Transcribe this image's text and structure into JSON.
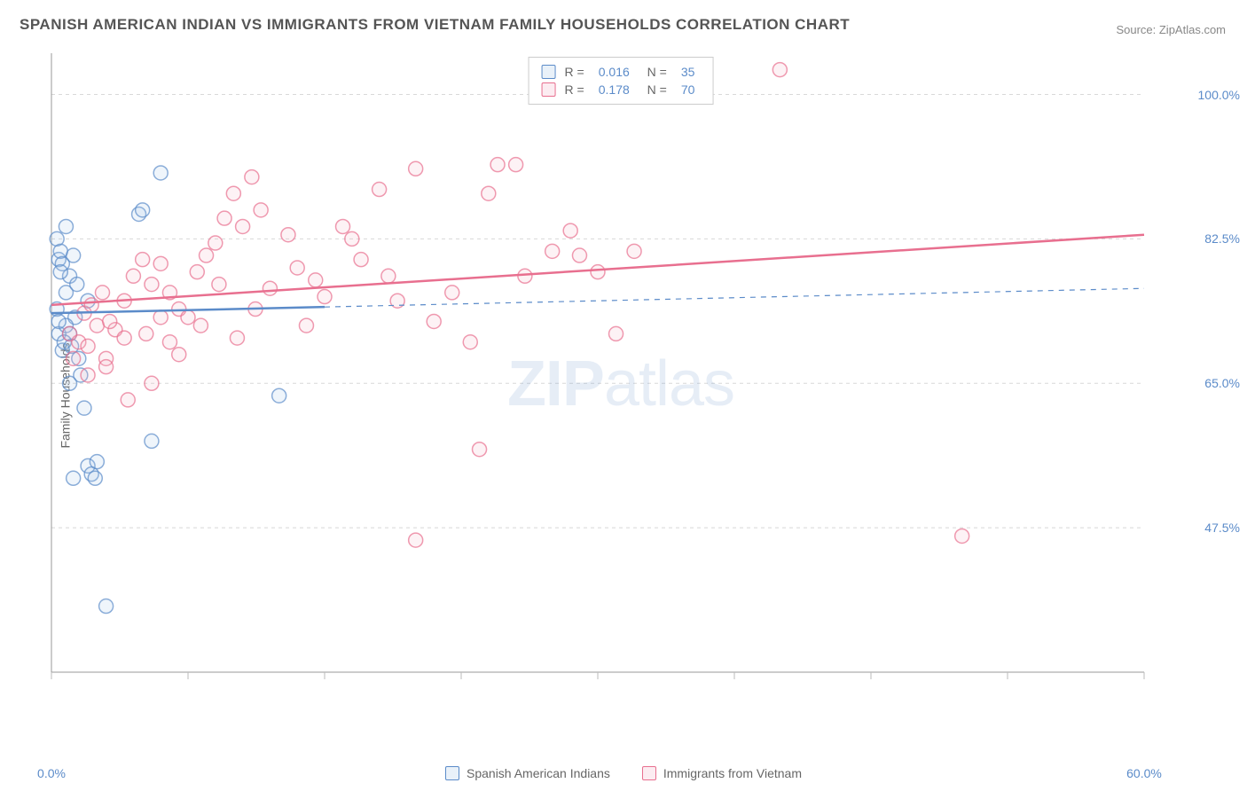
{
  "title": "SPANISH AMERICAN INDIAN VS IMMIGRANTS FROM VIETNAM FAMILY HOUSEHOLDS CORRELATION CHART",
  "source": "Source: ZipAtlas.com",
  "ylabel": "Family Households",
  "watermark_zip": "ZIP",
  "watermark_atlas": "atlas",
  "chart": {
    "type": "scatter",
    "background_color": "#ffffff",
    "grid_color": "#d8d8d8",
    "axis_color": "#999999",
    "tick_color": "#bbbbbb",
    "label_color": "#5b8bc9",
    "text_color": "#666666",
    "title_fontsize": 17,
    "label_fontsize": 14,
    "tick_fontsize": 14,
    "xlim": [
      0,
      60
    ],
    "ylim": [
      30,
      105
    ],
    "y_ticks": [
      47.5,
      65.0,
      82.5,
      100.0
    ],
    "y_tick_labels": [
      "47.5%",
      "65.0%",
      "82.5%",
      "100.0%"
    ],
    "x_ticks": [
      0,
      7.5,
      15,
      22.5,
      30,
      37.5,
      45,
      52.5,
      60
    ],
    "x_tick_labels_shown": {
      "0": "0.0%",
      "60": "60.0%"
    },
    "marker_radius": 8,
    "marker_stroke_width": 1.5,
    "marker_fill_opacity": 0.18,
    "trend_line_width": 2.5,
    "series": [
      {
        "name": "Spanish American Indians",
        "color_stroke": "#5b8bc9",
        "color_fill": "#a9c6e8",
        "R": "0.016",
        "N": "35",
        "trend": {
          "x1": 0,
          "y1": 73.5,
          "x2": 60,
          "y2": 76.5,
          "solid_until_x": 15
        },
        "points": [
          [
            0.3,
            82.5
          ],
          [
            0.4,
            80.0
          ],
          [
            0.5,
            81.0
          ],
          [
            0.6,
            79.5
          ],
          [
            0.8,
            84.0
          ],
          [
            1.0,
            78.0
          ],
          [
            1.2,
            80.5
          ],
          [
            1.3,
            73.0
          ],
          [
            1.5,
            68.0
          ],
          [
            1.6,
            66.0
          ],
          [
            0.4,
            71.0
          ],
          [
            0.6,
            69.0
          ],
          [
            0.8,
            72.0
          ],
          [
            1.0,
            65.0
          ],
          [
            1.8,
            62.0
          ],
          [
            2.0,
            55.0
          ],
          [
            2.2,
            54.0
          ],
          [
            2.4,
            53.5
          ],
          [
            2.5,
            55.5
          ],
          [
            1.2,
            53.5
          ],
          [
            3.0,
            38.0
          ],
          [
            5.5,
            58.0
          ],
          [
            6.0,
            90.5
          ],
          [
            4.8,
            85.5
          ],
          [
            5.0,
            86.0
          ],
          [
            0.5,
            78.5
          ],
          [
            0.8,
            76.0
          ],
          [
            1.4,
            77.0
          ],
          [
            2.0,
            75.0
          ],
          [
            0.3,
            74.0
          ],
          [
            0.4,
            72.5
          ],
          [
            1.0,
            71.0
          ],
          [
            0.7,
            70.0
          ],
          [
            1.1,
            69.5
          ],
          [
            12.5,
            63.5
          ]
        ]
      },
      {
        "name": "Immigrants from Vietnam",
        "color_stroke": "#e86f8f",
        "color_fill": "#f5b5c6",
        "R": "0.178",
        "N": "70",
        "trend": {
          "x1": 0,
          "y1": 74.5,
          "x2": 60,
          "y2": 83.0,
          "solid_until_x": 60
        },
        "points": [
          [
            1.0,
            71.0
          ],
          [
            1.5,
            70.0
          ],
          [
            2.0,
            69.5
          ],
          [
            2.5,
            72.0
          ],
          [
            3.0,
            68.0
          ],
          [
            3.5,
            71.5
          ],
          [
            4.0,
            75.0
          ],
          [
            4.5,
            78.0
          ],
          [
            5.0,
            80.0
          ],
          [
            5.5,
            77.0
          ],
          [
            6.0,
            79.5
          ],
          [
            6.5,
            76.0
          ],
          [
            7.0,
            74.0
          ],
          [
            7.5,
            73.0
          ],
          [
            8.0,
            78.5
          ],
          [
            8.5,
            80.5
          ],
          [
            9.0,
            82.0
          ],
          [
            9.5,
            85.0
          ],
          [
            10.0,
            88.0
          ],
          [
            10.5,
            84.0
          ],
          [
            11.0,
            90.0
          ],
          [
            11.5,
            86.0
          ],
          [
            12.0,
            76.5
          ],
          [
            13.0,
            83.0
          ],
          [
            13.5,
            79.0
          ],
          [
            14.0,
            72.0
          ],
          [
            14.5,
            77.5
          ],
          [
            15.0,
            75.5
          ],
          [
            16.0,
            84.0
          ],
          [
            16.5,
            82.5
          ],
          [
            17.0,
            80.0
          ],
          [
            18.0,
            88.5
          ],
          [
            18.5,
            78.0
          ],
          [
            19.0,
            75.0
          ],
          [
            20.0,
            91.0
          ],
          [
            21.0,
            72.5
          ],
          [
            22.0,
            76.0
          ],
          [
            23.0,
            70.0
          ],
          [
            24.0,
            88.0
          ],
          [
            24.5,
            91.5
          ],
          [
            25.5,
            91.5
          ],
          [
            23.5,
            57.0
          ],
          [
            26.0,
            78.0
          ],
          [
            27.5,
            81.0
          ],
          [
            28.5,
            83.5
          ],
          [
            29.0,
            80.5
          ],
          [
            30.0,
            78.5
          ],
          [
            31.0,
            71.0
          ],
          [
            32.0,
            81.0
          ],
          [
            40.0,
            103.0
          ],
          [
            20.0,
            46.0
          ],
          [
            50.0,
            46.5
          ],
          [
            2.0,
            66.0
          ],
          [
            3.0,
            67.0
          ],
          [
            4.0,
            70.5
          ],
          [
            5.5,
            65.0
          ],
          [
            6.0,
            73.0
          ],
          [
            6.5,
            70.0
          ],
          [
            7.0,
            68.5
          ],
          [
            1.2,
            68.0
          ],
          [
            1.8,
            73.5
          ],
          [
            2.2,
            74.5
          ],
          [
            2.8,
            76.0
          ],
          [
            3.2,
            72.5
          ],
          [
            4.2,
            63.0
          ],
          [
            5.2,
            71.0
          ],
          [
            8.2,
            72.0
          ],
          [
            9.2,
            77.0
          ],
          [
            10.2,
            70.5
          ],
          [
            11.2,
            74.0
          ]
        ]
      }
    ]
  },
  "legend_bottom": [
    {
      "label": "Spanish American Indians",
      "stroke": "#5b8bc9",
      "fill": "#a9c6e8"
    },
    {
      "label": "Immigrants from Vietnam",
      "stroke": "#e86f8f",
      "fill": "#f5b5c6"
    }
  ]
}
